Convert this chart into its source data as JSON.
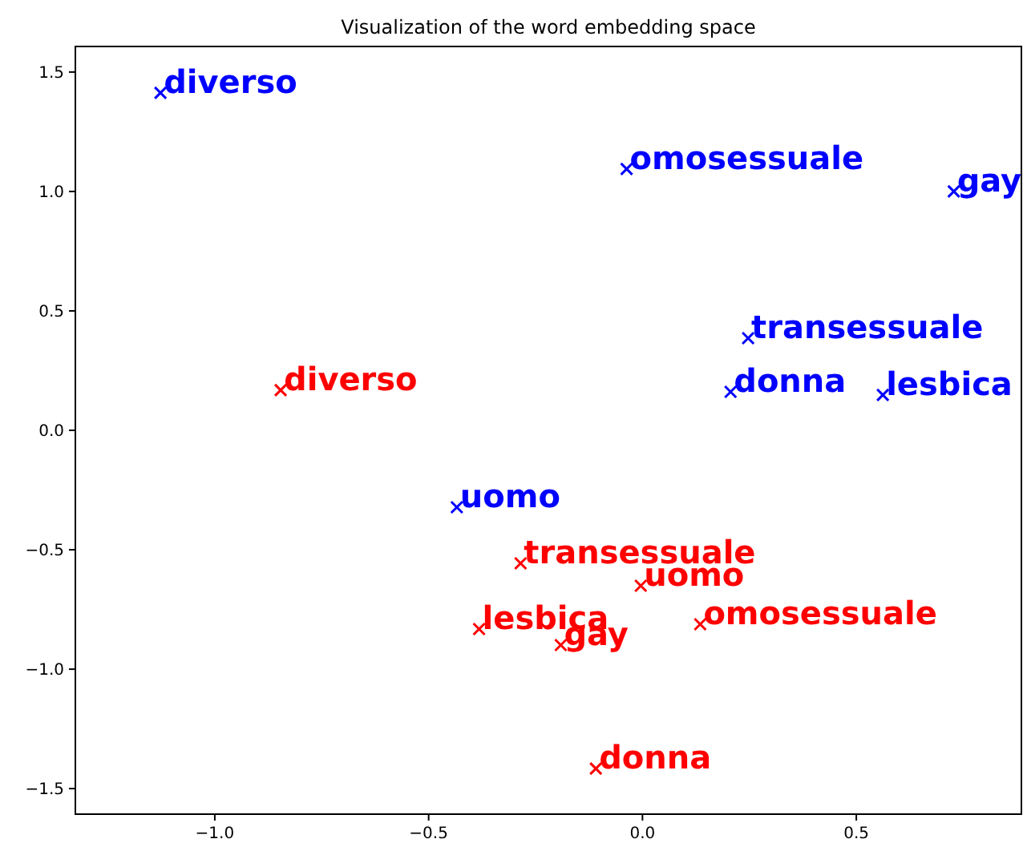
{
  "chart_data": {
    "type": "scatter",
    "title": "Visualization of the word embedding space",
    "marker": "cross",
    "series": [
      {
        "color": "#0000ff",
        "x": [
          -1.127,
          -0.037,
          0.728,
          0.247,
          0.206,
          0.562,
          -0.434
        ],
        "values": [
          1.413,
          1.094,
          1.0,
          0.386,
          0.161,
          0.148,
          -0.322
        ]
      },
      {
        "color": "#ff0000",
        "x": [
          -0.846,
          -0.285,
          -0.004,
          0.135,
          -0.382,
          -0.191,
          -0.109
        ],
        "values": [
          0.168,
          -0.557,
          -0.651,
          -0.812,
          -0.832,
          -0.899,
          -1.416
        ]
      }
    ],
    "annotations": [
      {
        "text": "diverso",
        "x": -1.127,
        "y": 1.413
      },
      {
        "text": "omosessuale",
        "x": -0.037,
        "y": 1.094
      },
      {
        "text": "gay",
        "x": 0.728,
        "y": 1.0
      },
      {
        "text": "transessuale",
        "x": 0.247,
        "y": 0.386
      },
      {
        "text": "donna",
        "x": 0.206,
        "y": 0.161
      },
      {
        "text": "lesbica",
        "x": 0.562,
        "y": 0.148
      },
      {
        "text": "uomo",
        "x": -0.434,
        "y": -0.322
      },
      {
        "text": "diverso",
        "x": -0.846,
        "y": 0.168
      },
      {
        "text": "transessuale",
        "x": -0.285,
        "y": -0.557
      },
      {
        "text": "uomo",
        "x": -0.004,
        "y": -0.651
      },
      {
        "text": "omosessuale",
        "x": 0.135,
        "y": -0.812
      },
      {
        "text": "lesbica",
        "x": -0.382,
        "y": -0.832
      },
      {
        "text": "gay",
        "x": -0.191,
        "y": -0.899
      },
      {
        "text": "donna",
        "x": -0.109,
        "y": -1.416
      }
    ],
    "xlim": [
      -1.326,
      0.886
    ],
    "ylim": [
      -1.607,
      1.607
    ],
    "xticks": [
      {
        "value": -1.0,
        "label": "−1.0"
      },
      {
        "value": -0.5,
        "label": "−0.5"
      },
      {
        "value": 0,
        "label": "0.0"
      },
      {
        "value": 0.5,
        "label": "0.5"
      }
    ],
    "yticks": [
      {
        "value": -1.5,
        "label": "−1.5"
      },
      {
        "value": -1.0,
        "label": "−1.0"
      },
      {
        "value": -0.5,
        "label": "−0.5"
      },
      {
        "value": 0,
        "label": "0.0"
      },
      {
        "value": 0.5,
        "label": "0.5"
      },
      {
        "value": 1.0,
        "label": "1.0"
      },
      {
        "value": 1.5,
        "label": "1.5"
      }
    ]
  }
}
